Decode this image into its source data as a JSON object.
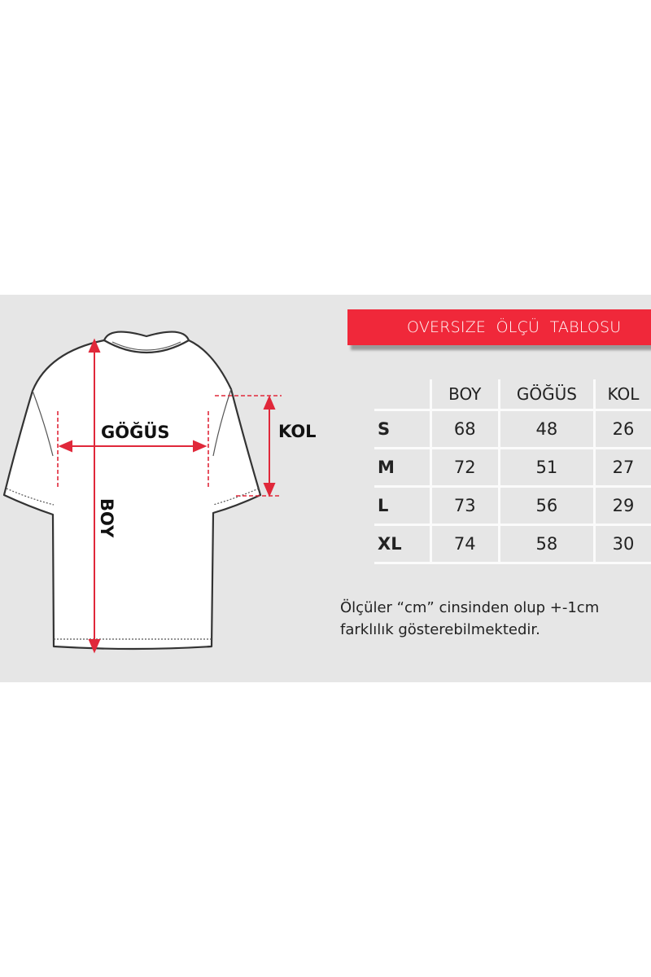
{
  "banner": {
    "title": "OVERSIZE  ÖLÇÜ  TABLOSU"
  },
  "diagram": {
    "labels": {
      "chest": "GÖĞÜS",
      "sleeve": "KOL",
      "length": "BOY"
    },
    "colors": {
      "arrow": "#e0283a",
      "banner": "#f0283a",
      "background": "#e6e6e6"
    }
  },
  "table": {
    "headers": [
      "",
      "BOY",
      "GÖĞÜS",
      "KOL"
    ],
    "rows": [
      {
        "size": "S",
        "boy": "68",
        "gogus": "48",
        "kol": "26"
      },
      {
        "size": "M",
        "boy": "72",
        "gogus": "51",
        "kol": "27"
      },
      {
        "size": "L",
        "boy": "73",
        "gogus": "56",
        "kol": "29"
      },
      {
        "size": "XL",
        "boy": "74",
        "gogus": "58",
        "kol": "30"
      }
    ]
  },
  "note": {
    "line1": "Ölçüler “cm” cinsinden olup +-1cm",
    "line2": "farklılık gösterebilmektedir."
  }
}
